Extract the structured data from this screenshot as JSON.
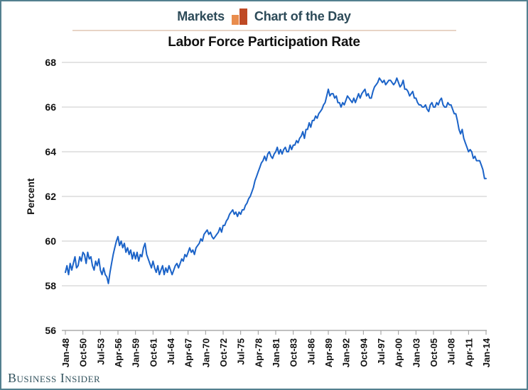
{
  "header": {
    "left_label": "Markets",
    "right_label": "Chart of the Day",
    "icon": "bar-chart-icon"
  },
  "footer": {
    "brand": "Business Insider"
  },
  "colors": {
    "frame_border": "#53808f",
    "header_text": "#2c4a58",
    "icon_orange_light": "#e98c4d",
    "icon_orange_dark": "#bf4a25",
    "header_rule": "#e8d4c6",
    "line_blue": "#1b63c8",
    "gridline": "#c9c9c9",
    "axis": "#9a9a9a",
    "tick_label": "#111111"
  },
  "chart_data": {
    "type": "line",
    "title": "Labor Force Participation Rate",
    "xlabel": "",
    "ylabel": "Percent",
    "ylim": [
      56,
      68
    ],
    "yticks": [
      56,
      58,
      60,
      62,
      64,
      66,
      68
    ],
    "grid": "horizontal",
    "legend": "none",
    "x_domain_years": [
      1948,
      2014
    ],
    "xtick_labels": [
      "Jan-48",
      "Oct-50",
      "Jul-53",
      "Apr-56",
      "Jan-59",
      "Oct-61",
      "Jul-64",
      "Apr-67",
      "Jan-70",
      "Oct-72",
      "Jul-75",
      "Apr-78",
      "Jan-81",
      "Oct-83",
      "Jul-86",
      "Apr-89",
      "Jan-92",
      "Oct-94",
      "Jul-97",
      "Apr-00",
      "Jan-03",
      "Oct-05",
      "Jul-08",
      "Apr-11",
      "Jan-14"
    ],
    "series": [
      {
        "name": "Labor force participation rate (percent)",
        "start_year": 1948,
        "interval_months": 3,
        "values": [
          58.6,
          58.9,
          58.5,
          59.0,
          58.7,
          59.0,
          59.3,
          58.8,
          58.9,
          59.3,
          59.1,
          59.5,
          59.4,
          59.0,
          59.5,
          59.2,
          59.3,
          58.9,
          58.7,
          59.1,
          58.9,
          59.2,
          58.7,
          58.5,
          58.8,
          58.5,
          58.4,
          58.1,
          58.6,
          59.0,
          59.4,
          59.7,
          60.0,
          60.2,
          59.8,
          60.0,
          59.7,
          59.9,
          59.5,
          59.7,
          59.4,
          59.6,
          59.2,
          59.5,
          59.2,
          59.5,
          59.1,
          59.4,
          59.3,
          59.7,
          59.9,
          59.4,
          59.2,
          59.0,
          58.8,
          59.1,
          58.8,
          58.6,
          58.9,
          58.5,
          58.7,
          58.9,
          58.5,
          58.8,
          58.6,
          58.9,
          58.7,
          58.5,
          58.7,
          58.9,
          59.0,
          58.8,
          59.0,
          59.2,
          59.1,
          59.4,
          59.3,
          59.5,
          59.7,
          59.5,
          59.6,
          59.4,
          59.7,
          59.8,
          59.9,
          60.1,
          60.0,
          60.3,
          60.4,
          60.5,
          60.3,
          60.4,
          60.2,
          60.1,
          60.2,
          60.3,
          60.4,
          60.6,
          60.4,
          60.7,
          60.7,
          60.9,
          61.0,
          61.2,
          61.3,
          61.4,
          61.2,
          61.3,
          61.1,
          61.3,
          61.2,
          61.4,
          61.4,
          61.6,
          61.7,
          61.9,
          62.0,
          62.2,
          62.4,
          62.7,
          62.9,
          63.1,
          63.3,
          63.5,
          63.6,
          63.8,
          63.6,
          63.9,
          64.0,
          63.8,
          63.7,
          63.9,
          64.0,
          64.2,
          63.9,
          64.1,
          63.9,
          64.1,
          64.2,
          64.0,
          64.0,
          64.3,
          64.1,
          64.3,
          64.3,
          64.5,
          64.4,
          64.6,
          64.7,
          64.9,
          64.6,
          65.0,
          65.0,
          65.3,
          65.1,
          65.4,
          65.4,
          65.6,
          65.5,
          65.7,
          65.8,
          65.9,
          66.1,
          66.2,
          66.5,
          66.8,
          66.5,
          66.6,
          66.6,
          66.4,
          66.5,
          66.2,
          66.2,
          66.0,
          66.2,
          66.1,
          66.3,
          66.5,
          66.4,
          66.3,
          66.2,
          66.4,
          66.2,
          66.4,
          66.6,
          66.4,
          66.6,
          66.7,
          66.8,
          66.5,
          66.6,
          66.4,
          66.4,
          66.7,
          66.9,
          67.0,
          67.1,
          67.3,
          67.2,
          67.1,
          67.2,
          67.0,
          67.1,
          67.2,
          67.2,
          67.1,
          67.0,
          67.1,
          67.3,
          67.1,
          66.9,
          67.0,
          67.2,
          66.8,
          66.8,
          66.7,
          66.5,
          66.6,
          66.7,
          66.4,
          66.4,
          66.2,
          66.1,
          66.1,
          66.0,
          66.0,
          66.1,
          65.9,
          65.8,
          66.1,
          66.2,
          66.0,
          66.0,
          66.2,
          66.1,
          66.3,
          66.4,
          66.1,
          66.0,
          66.0,
          66.2,
          66.1,
          66.1,
          65.9,
          65.7,
          65.7,
          65.4,
          65.0,
          64.8,
          65.0,
          64.6,
          64.4,
          64.2,
          64.0,
          64.1,
          64.0,
          63.7,
          63.8,
          63.6,
          63.6,
          63.6,
          63.4,
          63.2,
          62.8,
          62.8
        ]
      }
    ]
  }
}
